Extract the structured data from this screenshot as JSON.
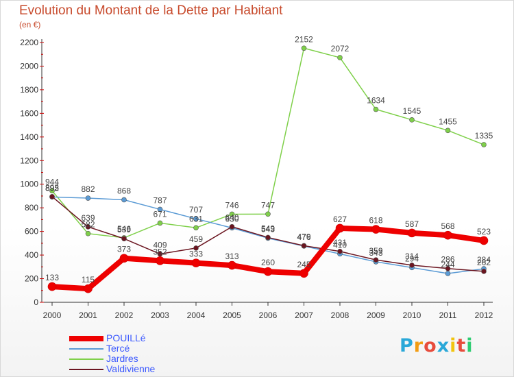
{
  "title": "Evolution du Montant de la Dette par Habitant",
  "unit": "(en €)",
  "logo": {
    "letters": [
      "P",
      "r",
      "o",
      "x",
      "i",
      "t",
      "i"
    ],
    "colors": [
      "#2aa8d8",
      "#f39c12",
      "#e74c3c",
      "#2aa8d8",
      "#f1c40f",
      "#e74c3c",
      "#2ecc71"
    ]
  },
  "chart_data": {
    "type": "line",
    "x": [
      "2000",
      "2001",
      "2002",
      "2003",
      "2004",
      "2005",
      "2006",
      "2007",
      "2008",
      "2009",
      "2010",
      "2011",
      "2012"
    ],
    "ylim": [
      0,
      2200
    ],
    "yticks": [
      0,
      200,
      400,
      600,
      800,
      1000,
      1200,
      1400,
      1600,
      1800,
      2000,
      2200
    ],
    "grid": false,
    "legend_position": "bottom-left",
    "series": [
      {
        "name": "POUILLé",
        "color": "#ee0000",
        "values": [
          133,
          115,
          373,
          352,
          333,
          313,
          260,
          245,
          627,
          618,
          587,
          568,
          523
        ]
      },
      {
        "name": "Tercé",
        "color": "#5b9bd5",
        "values": [
          892,
          882,
          868,
          787,
          707,
          630,
          543,
          476,
          410,
          343,
          294,
          244,
          284
        ]
      },
      {
        "name": "Jardres",
        "color": "#7fd04a",
        "values": [
          944,
          582,
          546,
          671,
          631,
          746,
          747,
          2152,
          2072,
          1634,
          1545,
          1455,
          1335
        ]
      },
      {
        "name": "Valdivienne",
        "color": "#6b1520",
        "values": [
          895,
          639,
          539,
          409,
          459,
          640,
          549,
          479,
          431,
          359,
          314,
          286,
          262
        ]
      }
    ]
  }
}
